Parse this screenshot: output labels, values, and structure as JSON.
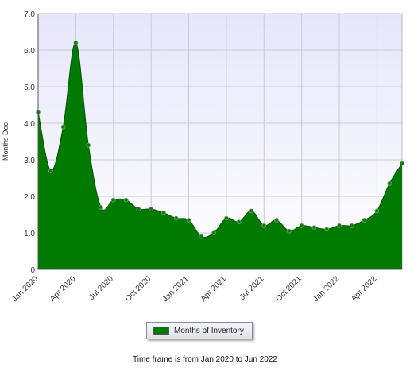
{
  "chart_data": {
    "type": "area",
    "title": "",
    "xlabel": "",
    "ylabel": "Months Dec",
    "ylim": [
      0,
      7
    ],
    "yticks": [
      "0",
      "1.0",
      "2.0",
      "3.0",
      "4.0",
      "5.0",
      "6.0",
      "7.0"
    ],
    "x_tick_labels": [
      "Jan 2020",
      "Apr 2020",
      "Jul 2020",
      "Oct 2020",
      "Jan 2021",
      "Apr 2021",
      "Jul 2021",
      "Oct 2021",
      "Jan 2022",
      "Apr 2022"
    ],
    "x": [
      "Jan 2020",
      "Feb 2020",
      "Mar 2020",
      "Apr 2020",
      "May 2020",
      "Jun 2020",
      "Jul 2020",
      "Aug 2020",
      "Sep 2020",
      "Oct 2020",
      "Nov 2020",
      "Dec 2020",
      "Jan 2021",
      "Feb 2021",
      "Mar 2021",
      "Apr 2021",
      "May 2021",
      "Jun 2021",
      "Jul 2021",
      "Aug 2021",
      "Sep 2021",
      "Oct 2021",
      "Nov 2021",
      "Dec 2021",
      "Jan 2022",
      "Feb 2022",
      "Mar 2022",
      "Apr 2022",
      "May 2022",
      "Jun 2022"
    ],
    "grid": true,
    "legend_position": "bottom-center",
    "series": [
      {
        "name": "Months of Inventory",
        "color": "#007a00",
        "values": [
          4.3,
          2.7,
          3.9,
          6.2,
          3.4,
          1.7,
          1.9,
          1.9,
          1.65,
          1.65,
          1.55,
          1.4,
          1.35,
          0.9,
          1.0,
          1.4,
          1.3,
          1.6,
          1.2,
          1.35,
          1.05,
          1.2,
          1.15,
          1.1,
          1.2,
          1.2,
          1.35,
          1.6,
          2.35,
          2.9
        ]
      }
    ]
  },
  "legend": {
    "label": "Months of Inventory",
    "swatch_color": "#007a00"
  },
  "footer": {
    "text": "Time frame is from Jan 2020 to Jun 2022"
  }
}
